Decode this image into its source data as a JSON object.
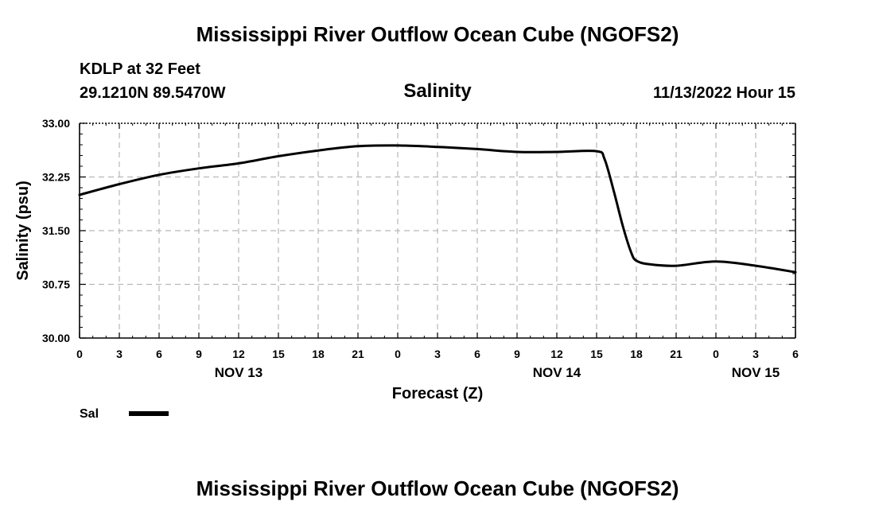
{
  "chart_data": {
    "type": "line",
    "title": "Mississippi River Outflow Ocean Cube (NGOFS2)",
    "station": "KDLP at 32 Feet",
    "location": "29.1210N  89.5470W",
    "subtitle": "Salinity",
    "datetime": "11/13/2022 Hour 15",
    "xlabel": "Forecast (Z)",
    "ylabel": "Salinity (psu)",
    "ylim": [
      30.0,
      33.0
    ],
    "yticks": [
      "33.00",
      "32.25",
      "31.50",
      "30.75",
      "30.00"
    ],
    "ytick_values": [
      33.0,
      32.25,
      31.5,
      30.75,
      30.0
    ],
    "xlim": [
      0,
      54
    ],
    "xticks": [
      "0",
      "3",
      "6",
      "9",
      "12",
      "15",
      "18",
      "21",
      "0",
      "3",
      "6",
      "9",
      "12",
      "15",
      "18",
      "21",
      "0",
      "3",
      "6"
    ],
    "day_labels": [
      {
        "label": "NOV 13",
        "hour": 12
      },
      {
        "label": "NOV 14",
        "hour": 36
      },
      {
        "label": "NOV 15",
        "hour": 51
      }
    ],
    "series": [
      {
        "name": "Sal",
        "x": [
          0,
          3,
          6,
          9,
          12,
          15,
          18,
          21,
          24,
          27,
          30,
          33,
          36,
          39,
          39.6,
          40.3,
          41,
          41.6,
          42,
          43,
          45,
          48,
          51,
          54
        ],
        "y": [
          32.0,
          32.15,
          32.28,
          32.37,
          32.44,
          32.54,
          32.62,
          32.68,
          32.69,
          32.67,
          32.64,
          32.6,
          32.6,
          32.61,
          32.5,
          32.05,
          31.55,
          31.2,
          31.08,
          31.03,
          31.01,
          31.07,
          31.01,
          30.92
        ]
      }
    ],
    "legend": {
      "label": "Sal"
    },
    "grid": true
  },
  "footer_title": "Mississippi River Outflow Ocean Cube (NGOFS2)"
}
